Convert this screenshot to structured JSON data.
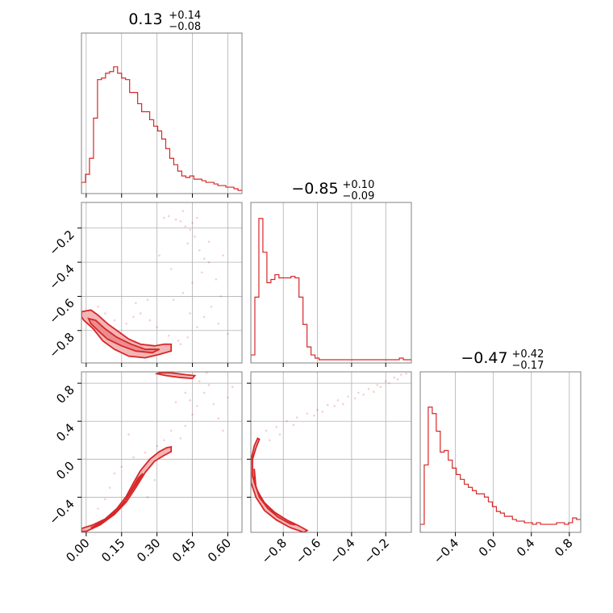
{
  "chart_data": {
    "type": "corner",
    "color": "#d62728",
    "fill_color": "#f4b5b6",
    "grid": true,
    "parameters": [
      {
        "median": "0.13",
        "plus": "+0.14",
        "minus": "−0.08",
        "range": [
          -0.02,
          0.66
        ],
        "ticks": [
          0.0,
          0.15,
          0.3,
          0.45,
          0.6
        ],
        "tick_labels": [
          "0.00",
          "0.15",
          "0.30",
          "0.45",
          "0.60"
        ],
        "hist": {
          "x0": -0.02,
          "width": 0.017,
          "counts": [
            0.07,
            0.12,
            0.22,
            0.47,
            0.71,
            0.72,
            0.75,
            0.76,
            0.79,
            0.75,
            0.72,
            0.71,
            0.63,
            0.63,
            0.56,
            0.51,
            0.51,
            0.46,
            0.42,
            0.39,
            0.34,
            0.28,
            0.22,
            0.18,
            0.14,
            0.11,
            0.1,
            0.11,
            0.09,
            0.09,
            0.08,
            0.07,
            0.07,
            0.06,
            0.05,
            0.05,
            0.04,
            0.04,
            0.03,
            0.02
          ]
        }
      },
      {
        "median": "−0.85",
        "plus": "+0.10",
        "minus": "−0.09",
        "range": [
          -0.99,
          -0.05
        ],
        "ticks": [
          -0.8,
          -0.6,
          -0.4,
          -0.2
        ],
        "tick_labels": [
          "−0.8",
          "−0.6",
          "−0.4",
          "−0.2"
        ],
        "hist": {
          "x0": -0.99,
          "width": 0.0235,
          "counts": [
            0.05,
            0.41,
            0.9,
            0.69,
            0.5,
            0.52,
            0.55,
            0.53,
            0.53,
            0.53,
            0.54,
            0.53,
            0.41,
            0.24,
            0.1,
            0.05,
            0.03,
            0.02,
            0.02,
            0.02,
            0.02,
            0.02,
            0.02,
            0.02,
            0.02,
            0.02,
            0.02,
            0.02,
            0.02,
            0.02,
            0.02,
            0.02,
            0.02,
            0.02,
            0.02,
            0.02,
            0.02,
            0.03,
            0.02,
            0.02
          ]
        }
      },
      {
        "median": "−0.47",
        "plus": "+0.42",
        "minus": "−0.17",
        "range": [
          -0.77,
          0.92
        ],
        "ticks": [
          -0.4,
          0.0,
          0.4,
          0.8
        ],
        "tick_labels": [
          "−0.4",
          "0.0",
          "0.4",
          "0.8"
        ],
        "hist": {
          "x0": -0.77,
          "width": 0.0422,
          "counts": [
            0.05,
            0.42,
            0.78,
            0.74,
            0.63,
            0.5,
            0.51,
            0.45,
            0.4,
            0.36,
            0.33,
            0.3,
            0.28,
            0.26,
            0.24,
            0.24,
            0.22,
            0.19,
            0.16,
            0.13,
            0.12,
            0.1,
            0.1,
            0.08,
            0.07,
            0.07,
            0.06,
            0.06,
            0.05,
            0.06,
            0.05,
            0.05,
            0.05,
            0.05,
            0.06,
            0.06,
            0.05,
            0.06,
            0.09,
            0.08
          ]
        }
      }
    ],
    "pairs": [
      {
        "x_param": 0,
        "y_param": 1,
        "contour_outer": [
          [
            -0.02,
            -0.69
          ],
          [
            0.02,
            -0.68
          ],
          [
            0.05,
            -0.71
          ],
          [
            0.09,
            -0.76
          ],
          [
            0.13,
            -0.8
          ],
          [
            0.18,
            -0.85
          ],
          [
            0.23,
            -0.88
          ],
          [
            0.29,
            -0.89
          ],
          [
            0.33,
            -0.88
          ],
          [
            0.36,
            -0.88
          ],
          [
            0.36,
            -0.92
          ],
          [
            0.31,
            -0.94
          ],
          [
            0.25,
            -0.96
          ],
          [
            0.18,
            -0.95
          ],
          [
            0.12,
            -0.91
          ],
          [
            0.07,
            -0.86
          ],
          [
            0.03,
            -0.79
          ],
          [
            -0.01,
            -0.74
          ],
          [
            -0.02,
            -0.72
          ]
        ],
        "contour_inner": [
          [
            0.01,
            -0.73
          ],
          [
            0.04,
            -0.74
          ],
          [
            0.08,
            -0.79
          ],
          [
            0.13,
            -0.84
          ],
          [
            0.19,
            -0.88
          ],
          [
            0.25,
            -0.91
          ],
          [
            0.31,
            -0.91
          ],
          [
            0.28,
            -0.93
          ],
          [
            0.21,
            -0.92
          ],
          [
            0.15,
            -0.89
          ],
          [
            0.09,
            -0.85
          ],
          [
            0.05,
            -0.8
          ],
          [
            0.02,
            -0.76
          ]
        ],
        "scatter": [
          [
            0.33,
            -0.14
          ],
          [
            0.35,
            -0.13
          ],
          [
            0.38,
            -0.15
          ],
          [
            0.4,
            -0.16
          ],
          [
            0.42,
            -0.19
          ],
          [
            0.44,
            -0.21
          ],
          [
            0.45,
            -0.17
          ],
          [
            0.47,
            -0.14
          ],
          [
            0.46,
            -0.25
          ],
          [
            0.43,
            -0.29
          ],
          [
            0.48,
            -0.33
          ],
          [
            0.5,
            -0.38
          ],
          [
            0.52,
            -0.4
          ],
          [
            0.49,
            -0.46
          ],
          [
            0.45,
            -0.52
          ],
          [
            0.41,
            -0.58
          ],
          [
            0.37,
            -0.62
          ],
          [
            0.55,
            -0.5
          ],
          [
            0.57,
            -0.6
          ],
          [
            0.53,
            -0.66
          ],
          [
            0.5,
            -0.72
          ],
          [
            0.47,
            -0.78
          ],
          [
            0.43,
            -0.84
          ],
          [
            0.39,
            -0.86
          ],
          [
            0.35,
            -0.83
          ],
          [
            0.3,
            -0.78
          ],
          [
            0.27,
            -0.74
          ],
          [
            0.23,
            -0.7
          ],
          [
            0.2,
            -0.72
          ],
          [
            0.17,
            -0.76
          ],
          [
            0.12,
            -0.74
          ],
          [
            0.08,
            -0.7
          ],
          [
            0.05,
            -0.66
          ],
          [
            0.56,
            -0.76
          ],
          [
            0.6,
            -0.82
          ],
          [
            0.4,
            -0.88
          ],
          [
            0.44,
            -0.7
          ],
          [
            0.36,
            -0.44
          ],
          [
            0.31,
            -0.36
          ],
          [
            0.52,
            -0.28
          ],
          [
            0.58,
            -0.36
          ],
          [
            0.26,
            -0.62
          ],
          [
            0.21,
            -0.64
          ],
          [
            0.41,
            -0.1
          ]
        ]
      },
      {
        "x_param": 0,
        "y_param": 2,
        "contour_outer": [
          [
            -0.02,
            -0.73
          ],
          [
            0.03,
            -0.69
          ],
          [
            0.08,
            -0.63
          ],
          [
            0.13,
            -0.52
          ],
          [
            0.17,
            -0.39
          ],
          [
            0.2,
            -0.25
          ],
          [
            0.23,
            -0.12
          ],
          [
            0.27,
            0.0
          ],
          [
            0.31,
            0.08
          ],
          [
            0.34,
            0.12
          ],
          [
            0.36,
            0.13
          ],
          [
            0.36,
            0.08
          ],
          [
            0.33,
            0.04
          ],
          [
            0.29,
            -0.02
          ],
          [
            0.25,
            -0.14
          ],
          [
            0.21,
            -0.3
          ],
          [
            0.17,
            -0.45
          ],
          [
            0.12,
            -0.58
          ],
          [
            0.06,
            -0.69
          ],
          [
            0.0,
            -0.76
          ],
          [
            -0.02,
            -0.76
          ]
        ],
        "contour_inner": [
          [
            0.02,
            -0.72
          ],
          [
            0.07,
            -0.67
          ],
          [
            0.12,
            -0.58
          ],
          [
            0.16,
            -0.46
          ],
          [
            0.19,
            -0.33
          ],
          [
            0.22,
            -0.2
          ],
          [
            0.24,
            -0.15
          ],
          [
            0.21,
            -0.27
          ],
          [
            0.17,
            -0.42
          ],
          [
            0.13,
            -0.54
          ],
          [
            0.08,
            -0.64
          ],
          [
            0.03,
            -0.71
          ]
        ],
        "contour_top": [
          [
            0.31,
            0.91
          ],
          [
            0.36,
            0.91
          ],
          [
            0.42,
            0.89
          ],
          [
            0.46,
            0.88
          ],
          [
            0.45,
            0.85
          ],
          [
            0.4,
            0.86
          ],
          [
            0.34,
            0.88
          ],
          [
            0.3,
            0.9
          ]
        ],
        "scatter": [
          [
            0.4,
            0.22
          ],
          [
            0.42,
            0.35
          ],
          [
            0.45,
            0.47
          ],
          [
            0.47,
            0.56
          ],
          [
            0.44,
            0.62
          ],
          [
            0.5,
            0.7
          ],
          [
            0.52,
            0.78
          ],
          [
            0.48,
            0.82
          ],
          [
            0.54,
            0.58
          ],
          [
            0.56,
            0.43
          ],
          [
            0.58,
            0.3
          ],
          [
            0.36,
            0.3
          ],
          [
            0.33,
            0.2
          ],
          [
            0.3,
            0.14
          ],
          [
            0.25,
            0.07
          ],
          [
            0.2,
            0.02
          ],
          [
            0.15,
            -0.08
          ],
          [
            0.1,
            -0.3
          ],
          [
            0.08,
            -0.42
          ],
          [
            0.26,
            -0.4
          ],
          [
            0.29,
            -0.22
          ],
          [
            0.38,
            0.6
          ],
          [
            0.6,
            0.65
          ],
          [
            0.62,
            0.76
          ],
          [
            0.51,
            0.91
          ],
          [
            0.18,
            0.26
          ],
          [
            0.12,
            -0.15
          ],
          [
            0.05,
            -0.52
          ],
          [
            0.42,
            0.7
          ]
        ]
      },
      {
        "x_param": 1,
        "y_param": 2,
        "contour_outer": [
          [
            -0.94,
            0.21
          ],
          [
            -0.96,
            0.12
          ],
          [
            -0.98,
            0.0
          ],
          [
            -0.98,
            -0.18
          ],
          [
            -0.95,
            -0.34
          ],
          [
            -0.91,
            -0.46
          ],
          [
            -0.85,
            -0.56
          ],
          [
            -0.78,
            -0.64
          ],
          [
            -0.71,
            -0.7
          ],
          [
            -0.66,
            -0.75
          ],
          [
            -0.68,
            -0.77
          ],
          [
            -0.76,
            -0.72
          ],
          [
            -0.84,
            -0.64
          ],
          [
            -0.91,
            -0.54
          ],
          [
            -0.96,
            -0.4
          ],
          [
            -0.99,
            -0.24
          ],
          [
            -0.99,
            -0.02
          ],
          [
            -0.97,
            0.14
          ],
          [
            -0.95,
            0.22
          ]
        ],
        "contour_inner": [
          [
            -0.97,
            -0.1
          ],
          [
            -0.96,
            -0.3
          ],
          [
            -0.92,
            -0.44
          ],
          [
            -0.86,
            -0.55
          ],
          [
            -0.79,
            -0.63
          ],
          [
            -0.73,
            -0.69
          ],
          [
            -0.76,
            -0.68
          ],
          [
            -0.83,
            -0.61
          ],
          [
            -0.89,
            -0.52
          ],
          [
            -0.94,
            -0.4
          ],
          [
            -0.97,
            -0.24
          ]
        ],
        "scatter": [
          [
            -0.9,
            0.3
          ],
          [
            -0.84,
            0.34
          ],
          [
            -0.78,
            0.4
          ],
          [
            -0.72,
            0.44
          ],
          [
            -0.66,
            0.48
          ],
          [
            -0.6,
            0.52
          ],
          [
            -0.54,
            0.57
          ],
          [
            -0.48,
            0.62
          ],
          [
            -0.42,
            0.66
          ],
          [
            -0.36,
            0.7
          ],
          [
            -0.3,
            0.74
          ],
          [
            -0.25,
            0.78
          ],
          [
            -0.2,
            0.82
          ],
          [
            -0.15,
            0.86
          ],
          [
            -0.11,
            0.89
          ],
          [
            -0.08,
            0.9
          ],
          [
            -0.82,
            0.26
          ],
          [
            -0.74,
            0.36
          ],
          [
            -0.62,
            0.46
          ],
          [
            -0.5,
            0.56
          ],
          [
            -0.38,
            0.64
          ],
          [
            -0.27,
            0.71
          ],
          [
            -0.18,
            0.8
          ],
          [
            -0.13,
            0.84
          ],
          [
            -0.57,
            0.5
          ],
          [
            -0.45,
            0.58
          ],
          [
            -0.33,
            0.68
          ],
          [
            -0.23,
            0.76
          ],
          [
            -0.88,
            0.2
          ]
        ]
      }
    ]
  }
}
